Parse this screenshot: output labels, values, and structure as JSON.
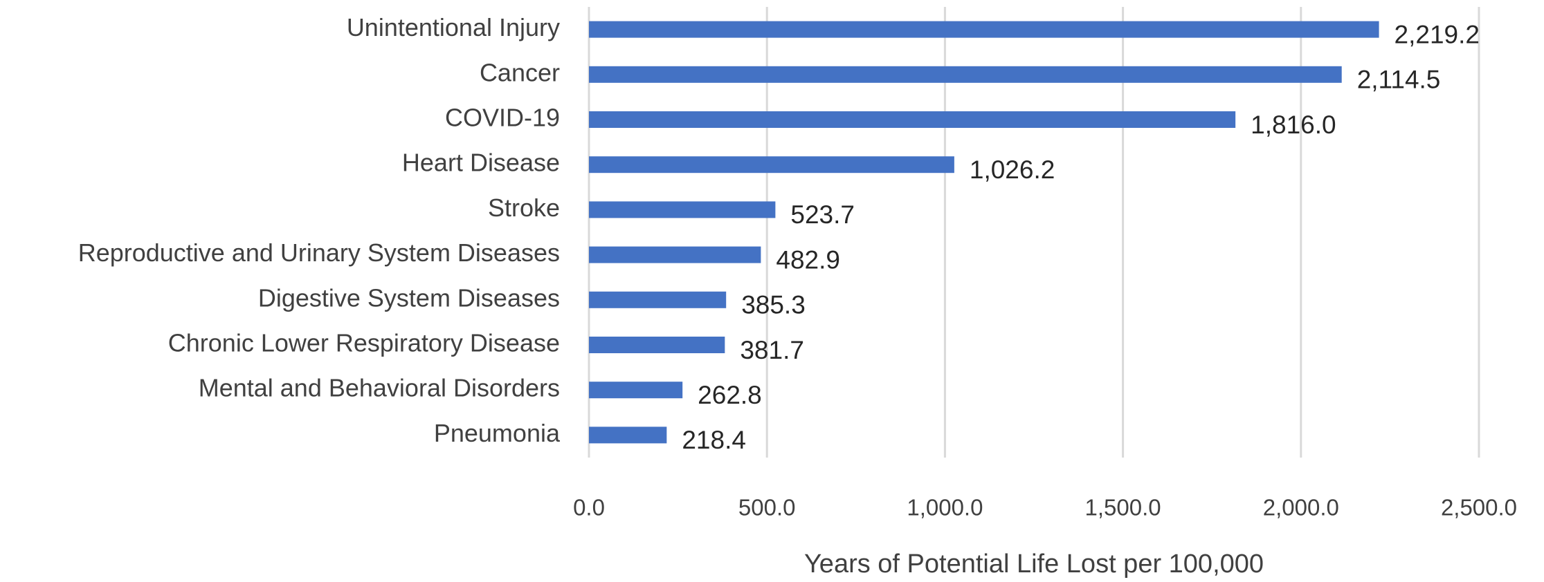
{
  "chart_data": {
    "type": "bar",
    "orientation": "horizontal",
    "x_label": "Years of Potential Life Lost per 100,000",
    "categories": [
      "Unintentional Injury",
      "Cancer",
      "COVID-19",
      "Heart Disease",
      "Stroke",
      "Reproductive and Urinary System Diseases",
      "Digestive System Diseases",
      "Chronic Lower Respiratory Disease",
      "Mental and Behavioral Disorders",
      "Pneumonia"
    ],
    "values": [
      2219.2,
      2114.5,
      1816.0,
      1026.2,
      523.7,
      482.9,
      385.3,
      381.7,
      262.8,
      218.4
    ],
    "value_labels": [
      "2,219.2",
      "2,114.5",
      "1,816.0",
      "1,026.2",
      "523.7",
      "482.9",
      "385.3",
      "381.7",
      "262.8",
      "218.4"
    ],
    "color": "#4472c4",
    "xlim": [
      0,
      2500
    ],
    "xticks": [
      {
        "value": 0,
        "label": "0.0"
      },
      {
        "value": 500,
        "label": "500.0"
      },
      {
        "value": 1000,
        "label": "1,000.0"
      },
      {
        "value": 1500,
        "label": "1,500.0"
      },
      {
        "value": 2000,
        "label": "2,000.0"
      },
      {
        "value": 2500,
        "label": "2,500.0"
      }
    ],
    "grid": true
  }
}
